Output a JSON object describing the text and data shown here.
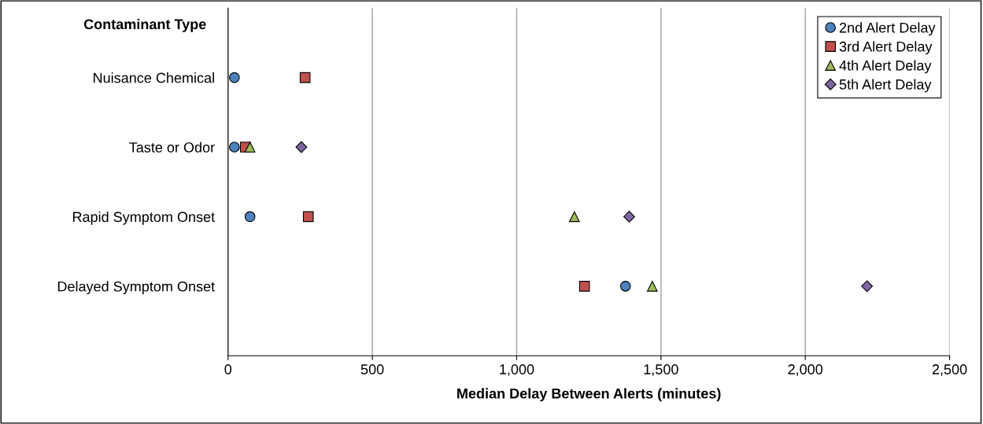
{
  "chart_data": {
    "type": "scatter",
    "xlabel": "Median Delay Between Alerts (minutes)",
    "ylabel": "Contaminant Type",
    "categories": [
      "Nuisance Chemical",
      "Taste or Odor",
      "Rapid Symptom Onset",
      "Delayed Symptom Onset"
    ],
    "orientation": "horizontal",
    "xlim": [
      0,
      2500
    ],
    "xticks": [
      0,
      {
        "value": 500,
        "label": "500"
      },
      {
        "value": 1000,
        "label": "1,000"
      },
      {
        "value": 1500,
        "label": "1,500"
      },
      {
        "value": 2000,
        "label": "2,000"
      },
      {
        "value": 2500,
        "label": "2,500"
      }
    ],
    "grid": "x",
    "legend": "top right",
    "series": [
      {
        "name": "2nd Alert Delay",
        "color": "#4f81bd",
        "marker": "circle",
        "values": [
          22,
          22,
          76,
          1377
        ]
      },
      {
        "name": "3rd Alert Delay",
        "color": "#c0504d",
        "marker": "square",
        "values": [
          267,
          60,
          278,
          1235
        ]
      },
      {
        "name": "4th Alert Delay",
        "color": "#9bbb59",
        "marker": "triangle",
        "values": [
          null,
          76,
          1200,
          1470
        ]
      },
      {
        "name": "5th Alert Delay",
        "color": "#8064a2",
        "marker": "diamond",
        "values": [
          null,
          254,
          1390,
          2214
        ]
      }
    ]
  }
}
